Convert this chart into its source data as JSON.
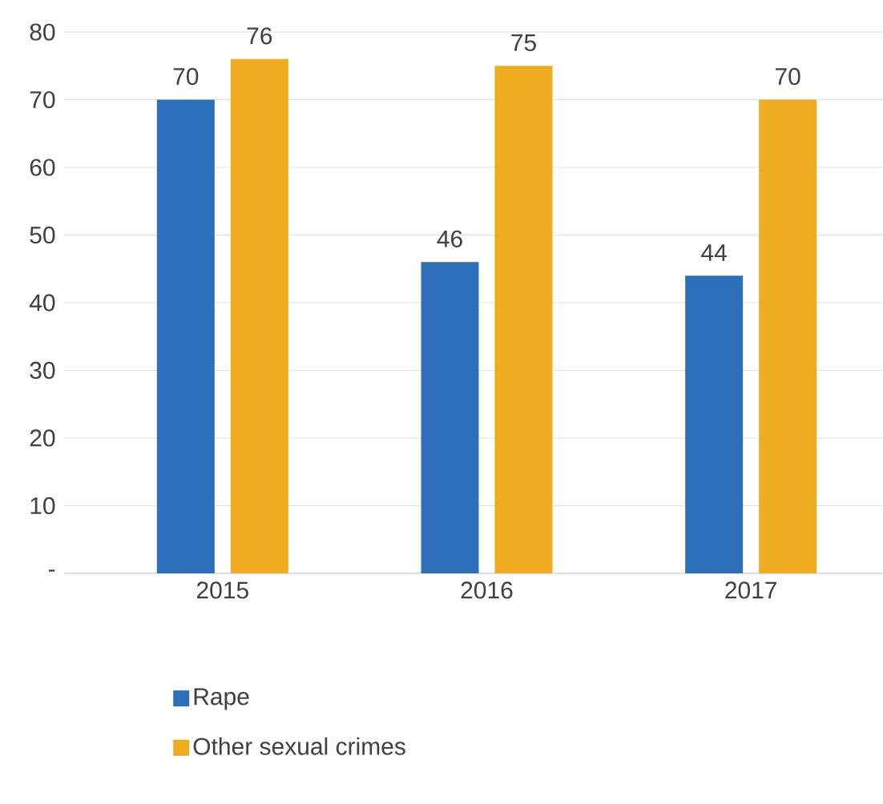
{
  "chart_data": {
    "type": "bar",
    "categories": [
      "2015",
      "2016",
      "2017"
    ],
    "series": [
      {
        "name": "Rape",
        "color": "#2e6fba",
        "values": [
          70,
          46,
          44
        ]
      },
      {
        "name": "Other sexual crimes",
        "color": "#efac1f",
        "values": [
          76,
          75,
          70
        ]
      }
    ],
    "ylim": [
      0,
      80
    ],
    "yticks": [
      {
        "value": 0,
        "label": "-"
      },
      10,
      20,
      30,
      40,
      50,
      60,
      70,
      80
    ],
    "grid": "y",
    "legend": "bottom",
    "data_labels": true
  }
}
